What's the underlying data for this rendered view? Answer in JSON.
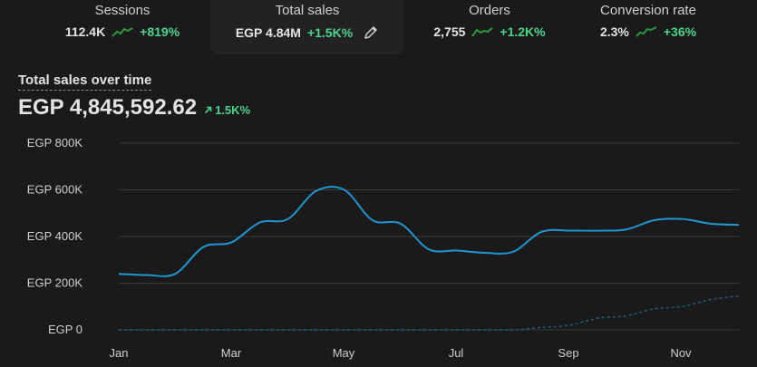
{
  "metrics": [
    {
      "label": "Sessions",
      "value": "112.4K",
      "delta": "+819%",
      "trend_icon": "sparkline-up-icon"
    },
    {
      "label": "Total sales",
      "value": "EGP 4.84M",
      "delta": "+1.5K%",
      "trend_icon": "pencil-icon"
    },
    {
      "label": "Orders",
      "value": "2,755",
      "delta": "+1.2K%",
      "trend_icon": "sparkline-up-icon"
    },
    {
      "label": "Conversion rate",
      "value": "2.3%",
      "delta": "+36%",
      "trend_icon": "sparkline-up-icon"
    }
  ],
  "chart_header": {
    "title": "Total sales over time",
    "total": "EGP 4,845,592.62",
    "delta": "1.5K%",
    "delta_icon": "arrow-up-right-icon"
  },
  "colors": {
    "background": "#1a1a1a",
    "accent": "#1f96d0",
    "comparison": "#1a5f86",
    "positive": "#4bd48b",
    "sparkline": "#2e9a3e",
    "grid": "#3a3a3a"
  },
  "chart_data": {
    "type": "line",
    "title": "Total sales over time",
    "xlabel": "",
    "ylabel": "",
    "x_tick_labels": [
      "Jan",
      "Mar",
      "May",
      "Jul",
      "Sep",
      "Nov"
    ],
    "y_tick_labels": [
      "EGP 800K",
      "EGP 600K",
      "EGP 400K",
      "EGP 200K",
      "EGP 0"
    ],
    "ylim": [
      0,
      800000
    ],
    "grid": true,
    "x": [
      "Jan",
      "Jan",
      "Feb",
      "Feb",
      "Mar",
      "Mar",
      "Apr",
      "Apr",
      "May",
      "May",
      "Jun",
      "Jun",
      "Jul",
      "Jul",
      "Aug",
      "Aug",
      "Sep",
      "Sep",
      "Oct",
      "Oct",
      "Nov",
      "Nov",
      "Dec"
    ],
    "series": [
      {
        "values": [
          240000,
          235000,
          240000,
          355000,
          375000,
          460000,
          475000,
          595000,
          600000,
          470000,
          455000,
          345000,
          340000,
          330000,
          335000,
          420000,
          425000,
          425000,
          430000,
          470000,
          475000,
          455000,
          450000
        ]
      },
      {
        "values": [
          0,
          0,
          0,
          0,
          0,
          0,
          0,
          0,
          0,
          0,
          0,
          0,
          0,
          0,
          0,
          10000,
          20000,
          50000,
          60000,
          90000,
          100000,
          130000,
          145000
        ]
      }
    ]
  }
}
